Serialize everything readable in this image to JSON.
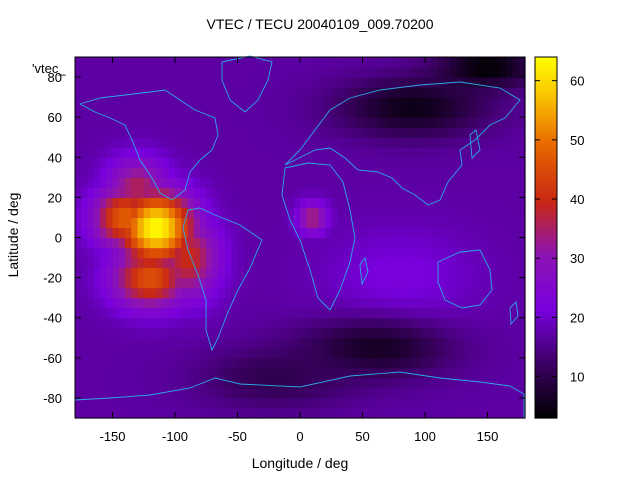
{
  "chart_data": {
    "type": "heatmap",
    "title": "VTEC / TECU 20040109_009.70200",
    "xlabel": "Longitude / deg",
    "ylabel": "Latitude / deg",
    "xlim": [
      -180,
      180
    ],
    "ylim": [
      -90,
      90
    ],
    "xticks": [
      "-150",
      "-100",
      "-50",
      "0",
      "50",
      "100",
      "150"
    ],
    "xtick_values": [
      -150,
      -100,
      -50,
      0,
      50,
      100,
      150
    ],
    "yticks": [
      "80",
      "60",
      "40",
      "20",
      "0",
      "-20",
      "-40",
      "-60",
      "-80"
    ],
    "ytick_values": [
      80,
      60,
      40,
      20,
      0,
      -20,
      -40,
      -60,
      -80
    ],
    "colorbar": {
      "range": [
        3,
        64
      ],
      "ticks": [
        "10",
        "20",
        "30",
        "40",
        "50",
        "60"
      ],
      "tick_values": [
        10,
        20,
        30,
        40,
        50,
        60
      ],
      "palette": "black-purple-red-orange-yellow"
    },
    "background_level": 17,
    "peaks": [
      {
        "lon": -115,
        "lat": 5,
        "value": 64,
        "spread_lon": 30,
        "spread_lat": 18
      },
      {
        "lon": -140,
        "lat": 10,
        "value": 48,
        "spread_lon": 25,
        "spread_lat": 15
      },
      {
        "lon": -120,
        "lat": -20,
        "value": 46,
        "spread_lon": 30,
        "spread_lat": 15
      },
      {
        "lon": -90,
        "lat": -10,
        "value": 40,
        "spread_lon": 25,
        "spread_lat": 20
      },
      {
        "lon": -130,
        "lat": 25,
        "value": 36,
        "spread_lon": 25,
        "spread_lat": 15
      },
      {
        "lon": 10,
        "lat": 10,
        "value": 35,
        "spread_lon": 12,
        "spread_lat": 8
      },
      {
        "lon": 80,
        "lat": -20,
        "value": 22,
        "spread_lon": 60,
        "spread_lat": 25
      }
    ],
    "troughs": [
      {
        "lon": 90,
        "lat": 65,
        "value": 5,
        "spread_lon": 60,
        "spread_lat": 15
      },
      {
        "lon": 150,
        "lat": 85,
        "value": 3,
        "spread_lon": 40,
        "spread_lat": 10
      },
      {
        "lon": 60,
        "lat": -55,
        "value": 6,
        "spread_lon": 60,
        "spread_lat": 15
      },
      {
        "lon": -20,
        "lat": -70,
        "value": 10,
        "spread_lon": 60,
        "spread_lat": 15
      }
    ],
    "overlay": "coastlines",
    "overlay_color": "#2ba8e8"
  },
  "stray_label": "'vtec_"
}
